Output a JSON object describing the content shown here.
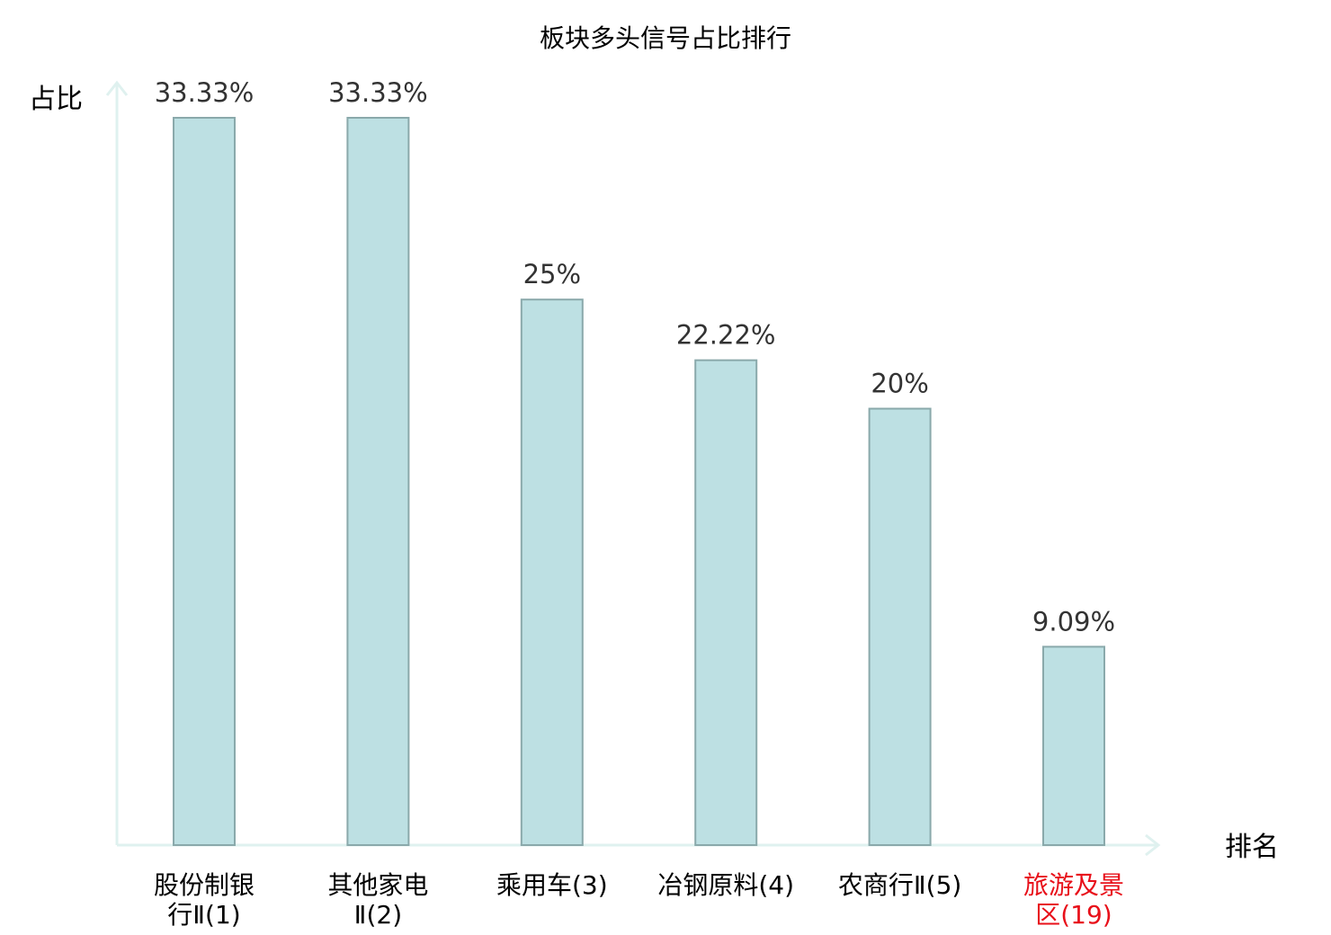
{
  "chart_data": {
    "type": "bar",
    "title": "板块多头信号占比排行",
    "ylabel": "占比",
    "xlabel": "排名",
    "ylim": [
      0,
      33.33
    ],
    "categories": [
      {
        "lines": [
          "股份制银",
          "行Ⅱ(1)"
        ],
        "highlight": false
      },
      {
        "lines": [
          "其他家电",
          "Ⅱ(2)"
        ],
        "highlight": false
      },
      {
        "lines": [
          "乘用车(3)"
        ],
        "highlight": false
      },
      {
        "lines": [
          "冶钢原料(4)"
        ],
        "highlight": false
      },
      {
        "lines": [
          "农商行Ⅱ(5)"
        ],
        "highlight": false
      },
      {
        "lines": [
          "旅游及景",
          "区(19)"
        ],
        "highlight": true
      }
    ],
    "values": [
      33.33,
      33.33,
      25,
      22.22,
      20,
      9.09
    ],
    "value_labels": [
      "33.33%",
      "33.33%",
      "25%",
      "22.22%",
      "20%",
      "9.09%"
    ],
    "grid": false,
    "colors": {
      "bar_fill": "#bde0e3",
      "bar_stroke": "#8aa9ab",
      "axis": "#dff1ef",
      "label": "#333333",
      "highlight": "#e8101a",
      "text": "#000000"
    }
  }
}
